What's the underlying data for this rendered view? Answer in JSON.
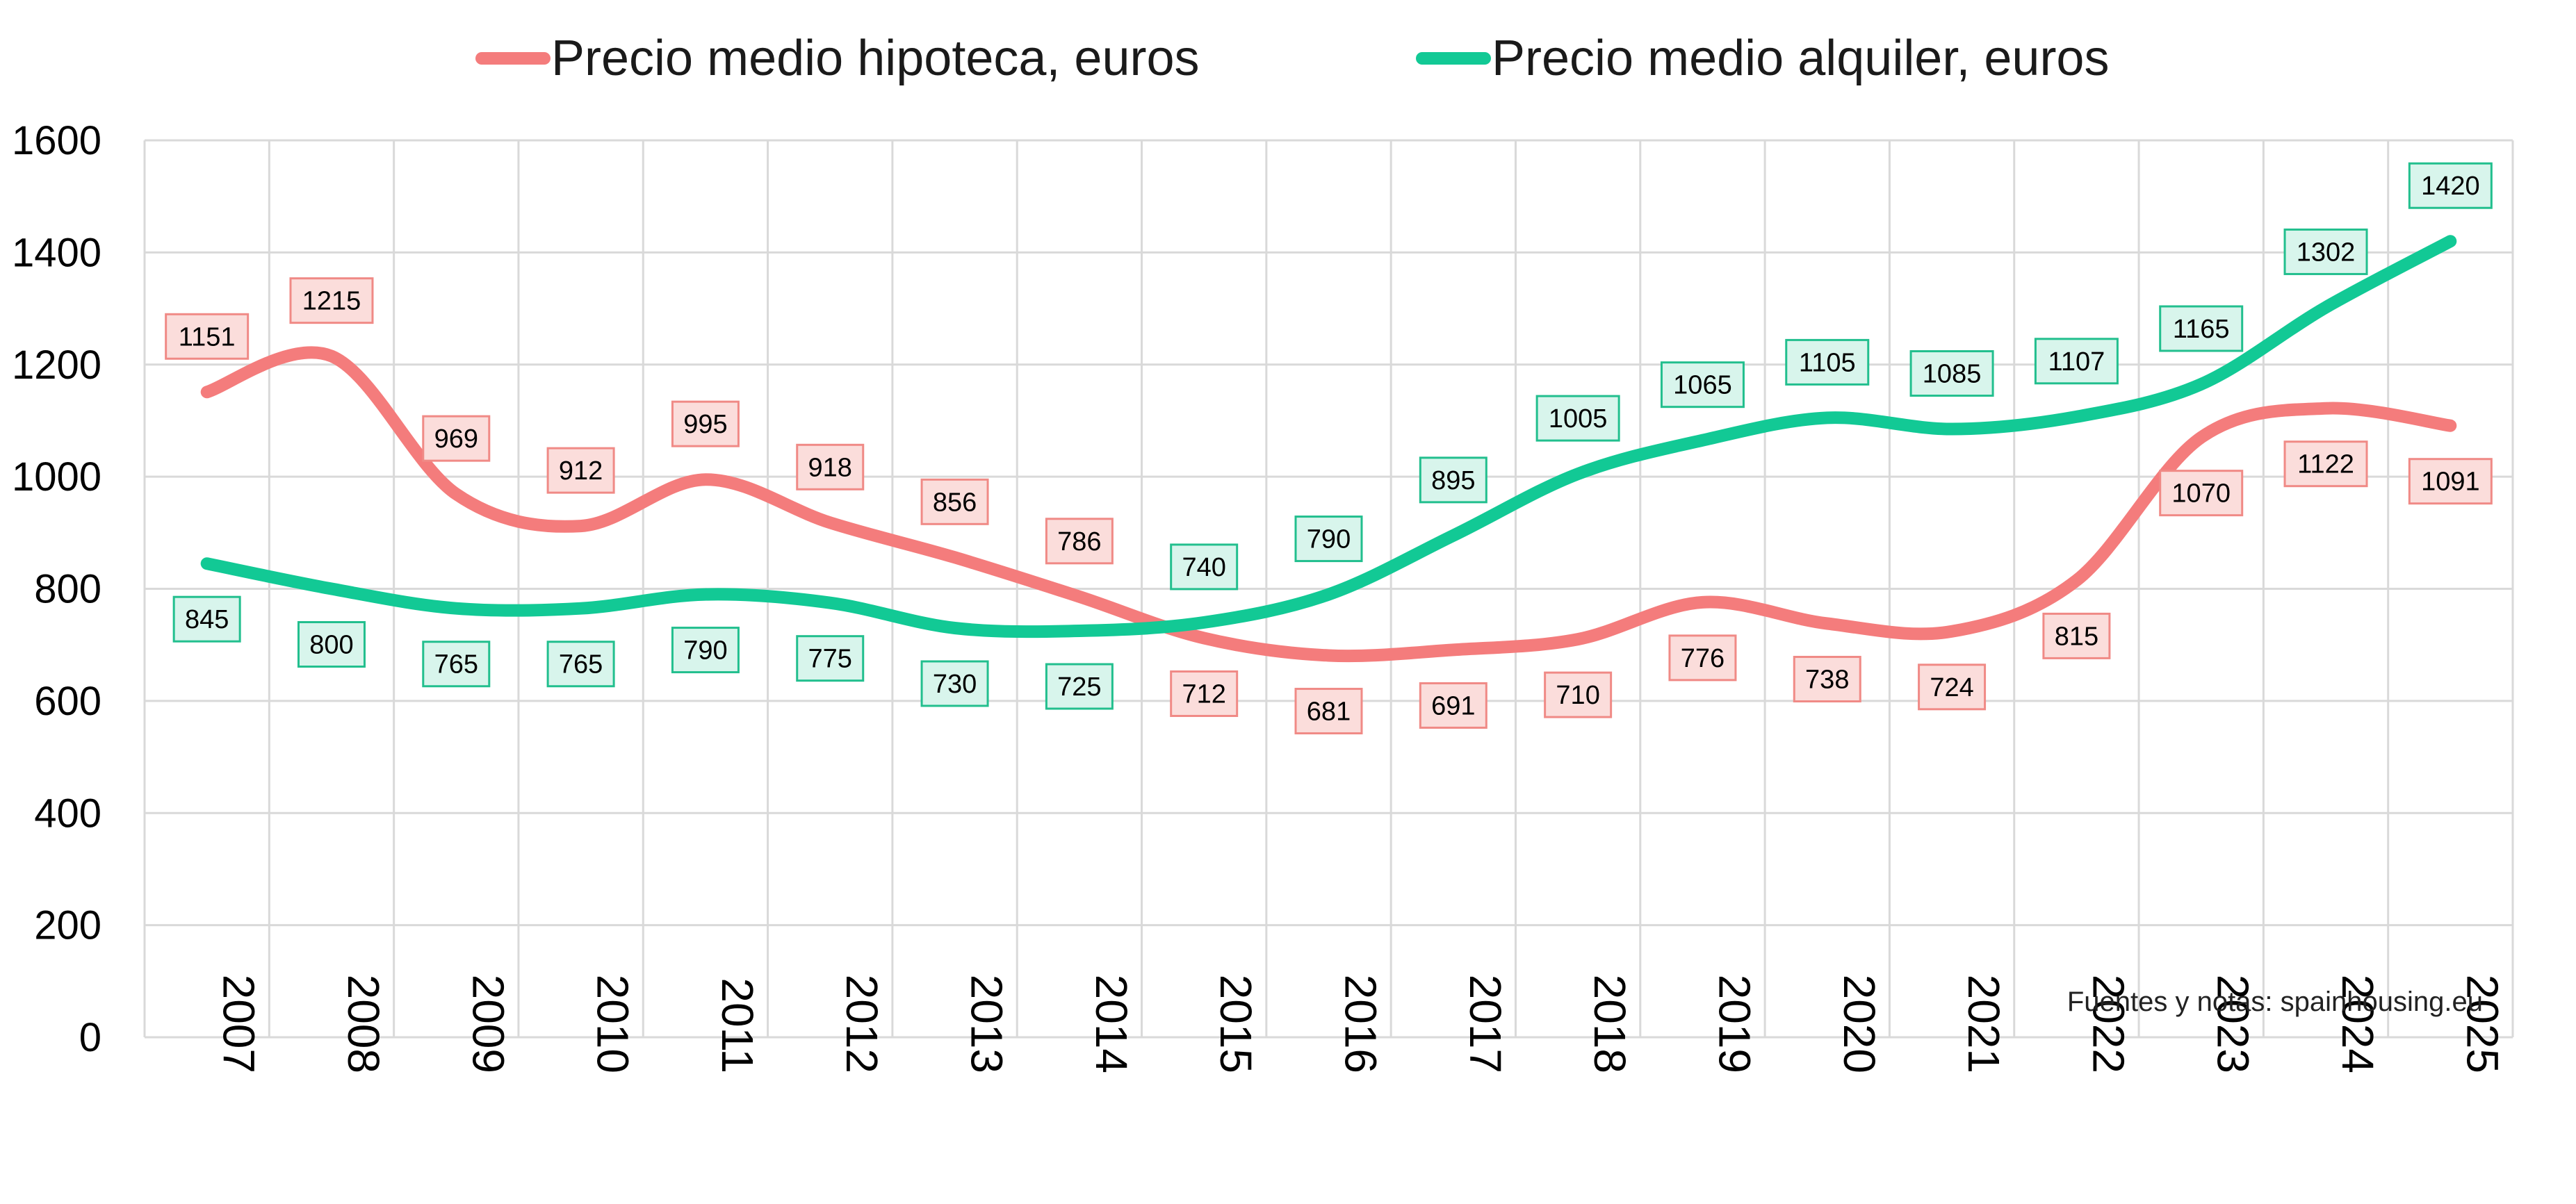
{
  "chart_data": {
    "type": "line",
    "title": "",
    "xlabel": "",
    "ylabel": "",
    "ylim": [
      0,
      1600
    ],
    "yticks": [
      0,
      200,
      400,
      600,
      800,
      1000,
      1200,
      1400,
      1600
    ],
    "grid": true,
    "legend_position": "top",
    "categories": [
      "2007",
      "2008",
      "2009",
      "2010",
      "2011",
      "2012",
      "2013",
      "2014",
      "2015",
      "2016",
      "2017",
      "2018",
      "2019",
      "2020",
      "2021",
      "2022",
      "2023",
      "2024",
      "2025"
    ],
    "series": [
      {
        "name": "Precio medio hipoteca, euros",
        "color": "#F47C7C",
        "label_fill": "#FBDDDB",
        "label_stroke": "#F08A86",
        "values": [
          1151,
          1215,
          969,
          912,
          995,
          918,
          856,
          786,
          712,
          681,
          691,
          710,
          776,
          738,
          724,
          815,
          1070,
          1122,
          1091
        ],
        "label_pos": [
          "above",
          "above",
          "above",
          "above",
          "above",
          "above",
          "above",
          "above",
          "below",
          "below",
          "below",
          "below",
          "below",
          "below",
          "below",
          "below",
          "below",
          "below",
          "below"
        ]
      },
      {
        "name": "Precio medio alquiler, euros",
        "color": "#12C995",
        "label_fill": "#D8F5EC",
        "label_stroke": "#22BF8E",
        "values": [
          845,
          800,
          765,
          765,
          790,
          775,
          730,
          725,
          740,
          790,
          895,
          1005,
          1065,
          1105,
          1085,
          1107,
          1165,
          1302,
          1420
        ],
        "label_pos": [
          "below",
          "below",
          "below",
          "below",
          "below",
          "below",
          "below",
          "below",
          "above",
          "above",
          "above",
          "above",
          "above",
          "above",
          "above",
          "above",
          "above",
          "above",
          "above"
        ]
      }
    ],
    "annotation": "Fuentes y notas: spainhousing.eu"
  },
  "style": {
    "grid_color": "#D9D9D9"
  }
}
